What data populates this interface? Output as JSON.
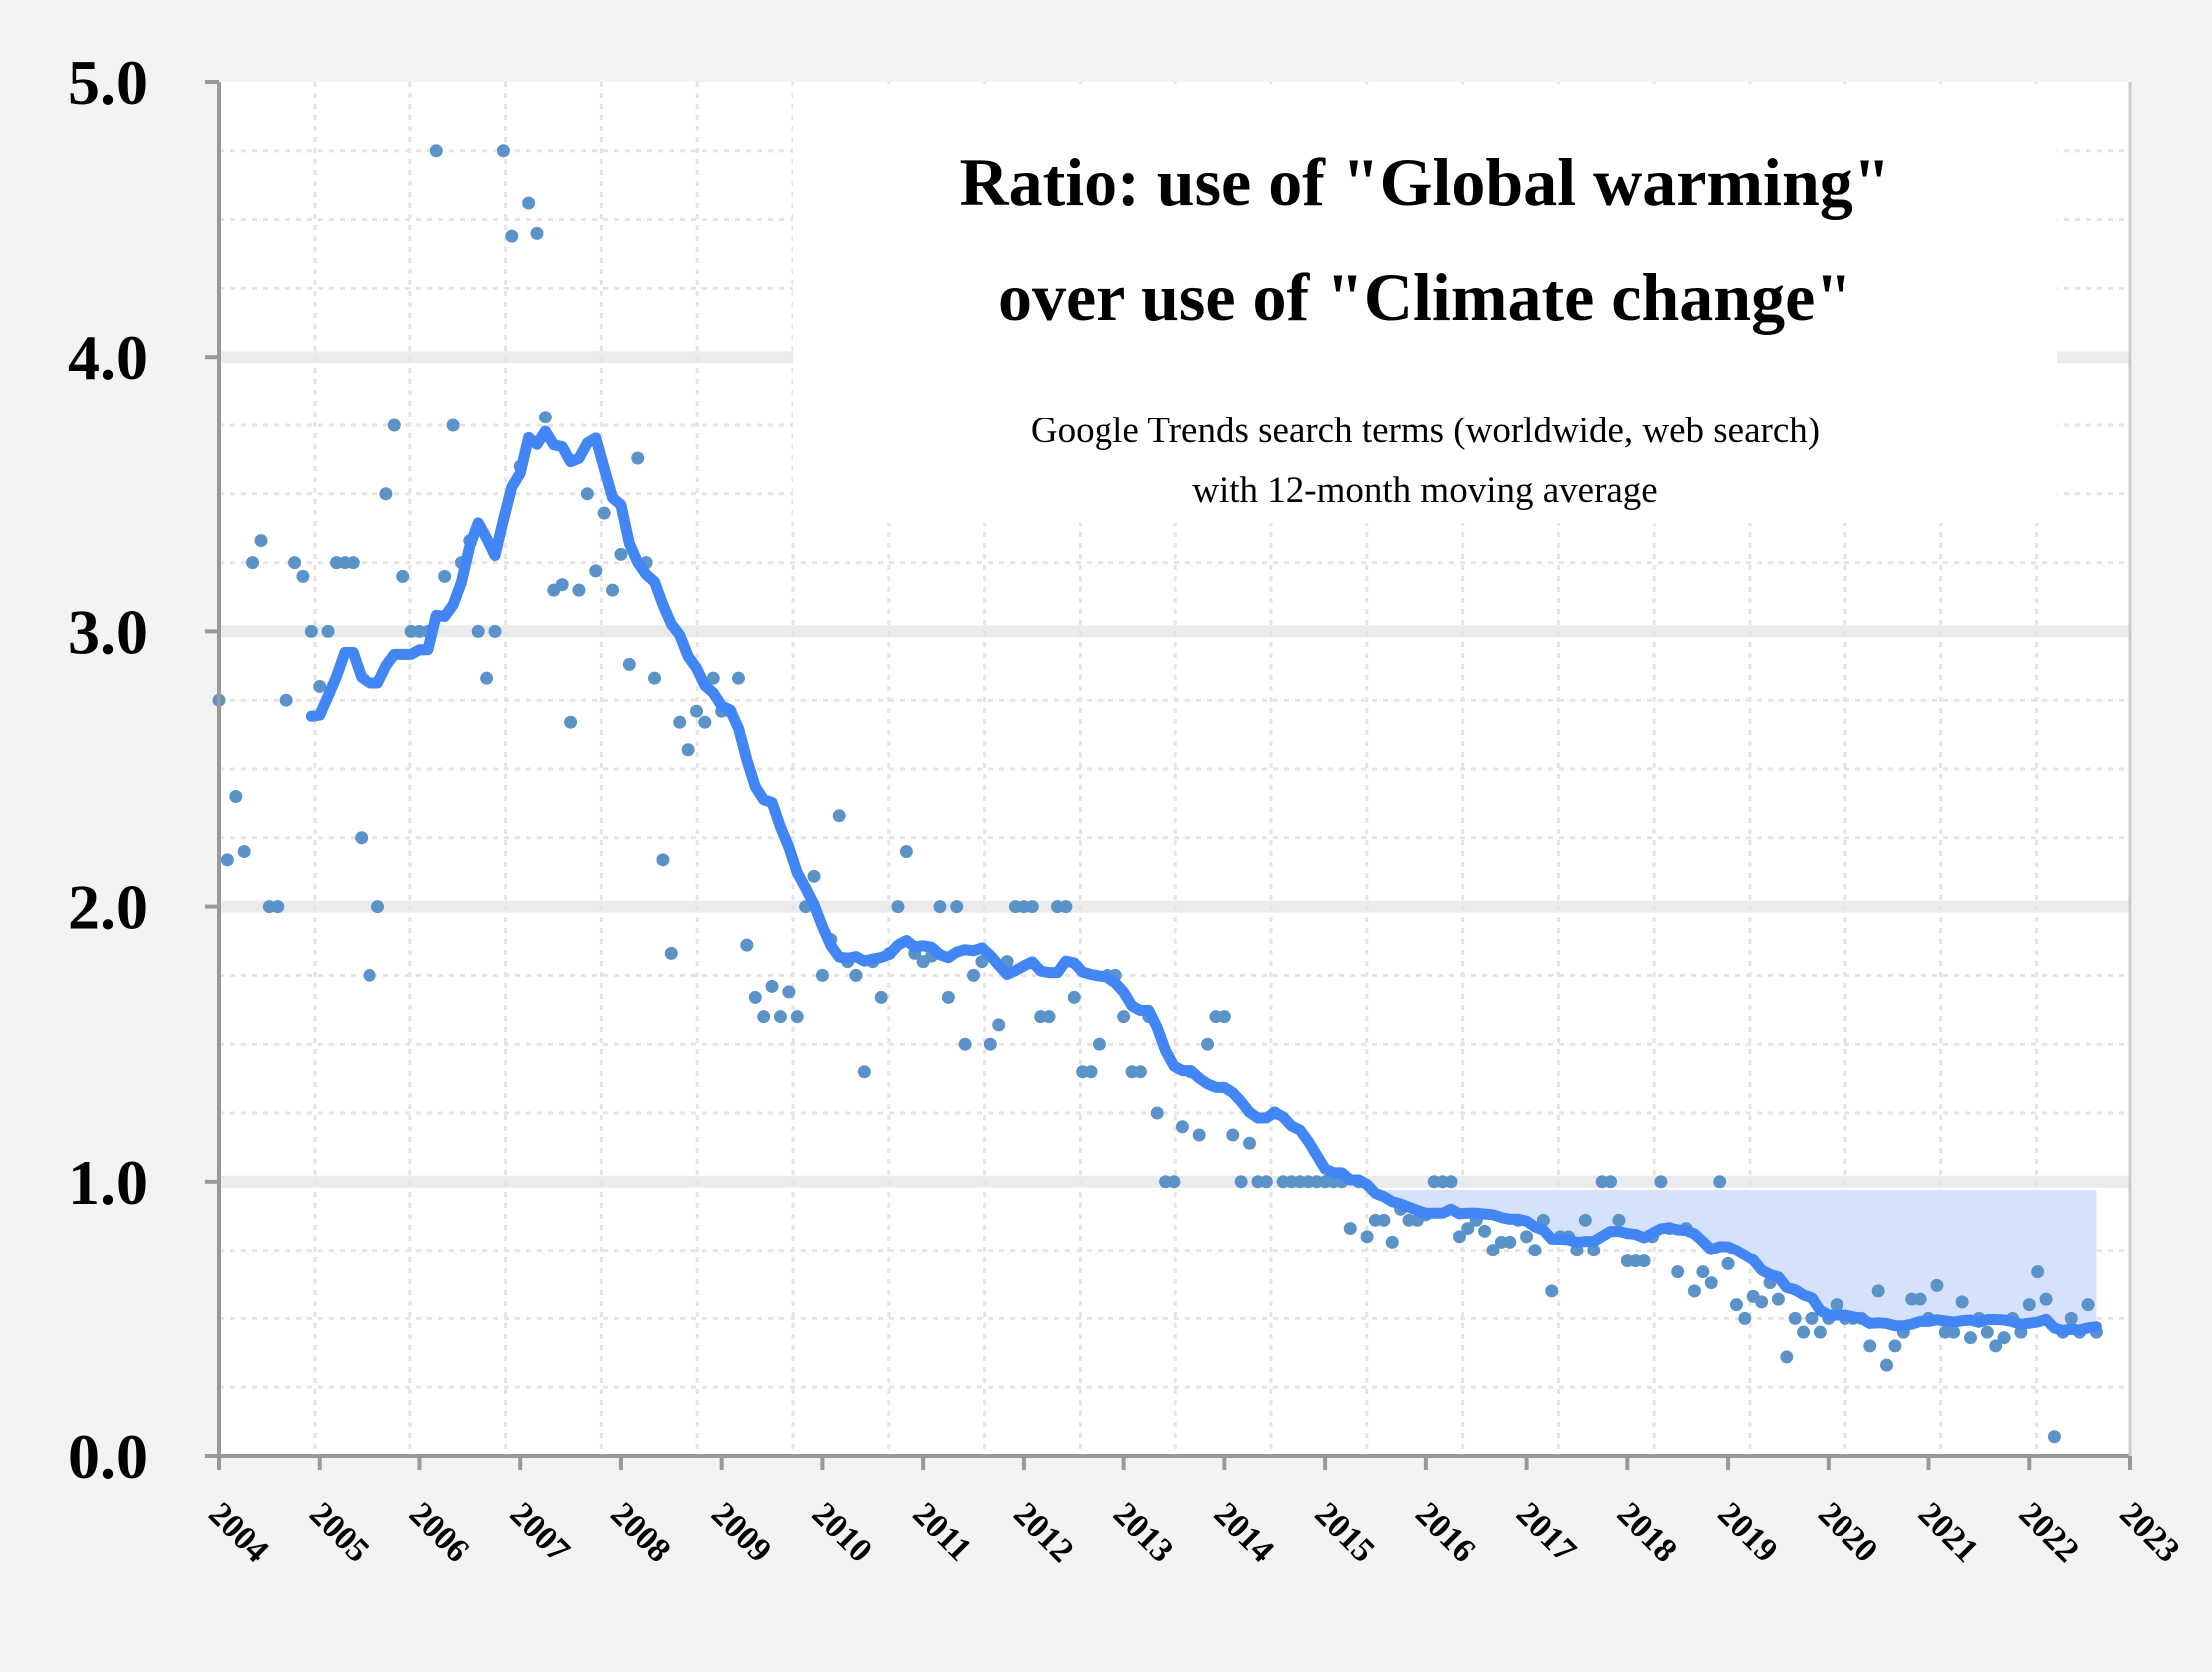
{
  "chart_data": {
    "type": "scatter+line",
    "title_line1": "Ratio: use of \"Global warming\"",
    "title_line2": "over use of \"Climate change\"",
    "subtitle_line1": "Google Trends search terms (worldwide, web search)",
    "subtitle_line2": "with 12-month moving average",
    "xlabel": "",
    "ylabel": "",
    "ylim": [
      0,
      5
    ],
    "y_ticks": [
      "0.0",
      "1.0",
      "2.0",
      "3.0",
      "4.0",
      "5.0"
    ],
    "x_ticks": [
      "2004",
      "2005",
      "2006",
      "2007",
      "2008",
      "2009",
      "2010",
      "2011",
      "2012",
      "2013",
      "2014",
      "2015",
      "2016",
      "2017",
      "2018",
      "2019",
      "2020",
      "2021",
      "2022",
      "2023"
    ],
    "x_start": "2004-01",
    "x_step": "month",
    "grid": true,
    "moving_average_window_months": 12,
    "colors": {
      "points": "#5b93c9",
      "moving_average": "#4285f4",
      "highlight": "#d6e2fb",
      "axis": "#999999"
    },
    "highlight": {
      "from": "2015-02",
      "ceiling": 0.97
    },
    "values": [
      2.75,
      2.17,
      2.4,
      2.2,
      3.25,
      3.33,
      2.0,
      2.0,
      2.75,
      3.25,
      3.2,
      3.0,
      2.8,
      3.0,
      3.25,
      3.25,
      3.25,
      2.25,
      1.75,
      2.0,
      3.5,
      3.75,
      3.2,
      3.0,
      3.0,
      3.0,
      4.75,
      3.2,
      3.75,
      3.25,
      3.33,
      3.0,
      2.83,
      3.0,
      4.75,
      4.44,
      3.6,
      4.56,
      4.45,
      3.78,
      3.15,
      3.17,
      2.67,
      3.15,
      3.5,
      3.22,
      3.43,
      3.15,
      3.28,
      2.88,
      3.63,
      3.25,
      2.83,
      2.17,
      1.83,
      2.67,
      2.57,
      2.71,
      2.67,
      2.83,
      2.71,
      2.71,
      2.83,
      1.86,
      1.67,
      1.6,
      1.71,
      1.6,
      1.69,
      1.6,
      2.0,
      2.11,
      1.75,
      1.88,
      2.33,
      1.8,
      1.75,
      1.4,
      1.8,
      1.67,
      1.83,
      2.0,
      2.2,
      1.83,
      1.8,
      1.82,
      2.0,
      1.67,
      2.0,
      1.5,
      1.75,
      1.8,
      1.5,
      1.57,
      1.8,
      2.0,
      2.0,
      2.0,
      1.6,
      1.6,
      2.0,
      2.0,
      1.67,
      1.4,
      1.4,
      1.5,
      1.75,
      1.75,
      1.6,
      1.4,
      1.4,
      1.6,
      1.25,
      1.0,
      1.0,
      1.2,
      1.4,
      1.17,
      1.5,
      1.6,
      1.6,
      1.17,
      1.0,
      1.14,
      1.0,
      1.0,
      1.25,
      1.0,
      1.0,
      1.0,
      1.0,
      1.0,
      1.0,
      1.0,
      1.0,
      0.83,
      1.0,
      0.8,
      0.86,
      0.86,
      0.78,
      0.9,
      0.86,
      0.86,
      0.88,
      1.0,
      1.0,
      1.0,
      0.8,
      0.83,
      0.86,
      0.82,
      0.75,
      0.78,
      0.78,
      0.86,
      0.8,
      0.75,
      0.86,
      0.6,
      0.8,
      0.8,
      0.75,
      0.86,
      0.75,
      1.0,
      1.0,
      0.86,
      0.71,
      0.71,
      0.71,
      0.8,
      1.0,
      0.83,
      0.67,
      0.83,
      0.6,
      0.67,
      0.63,
      1.0,
      0.7,
      0.55,
      0.5,
      0.58,
      0.56,
      0.63,
      0.57,
      0.36,
      0.5,
      0.45,
      0.5,
      0.45,
      0.5,
      0.55,
      0.5,
      0.5,
      0.5,
      0.4,
      0.6,
      0.33,
      0.4,
      0.45,
      0.57,
      0.57,
      0.5,
      0.62,
      0.45,
      0.45,
      0.56,
      0.43,
      0.5,
      0.45,
      0.4,
      0.43,
      0.5,
      0.45,
      0.55,
      0.67,
      0.57,
      0.07,
      0.45,
      0.5,
      0.45,
      0.55,
      0.45
    ]
  }
}
